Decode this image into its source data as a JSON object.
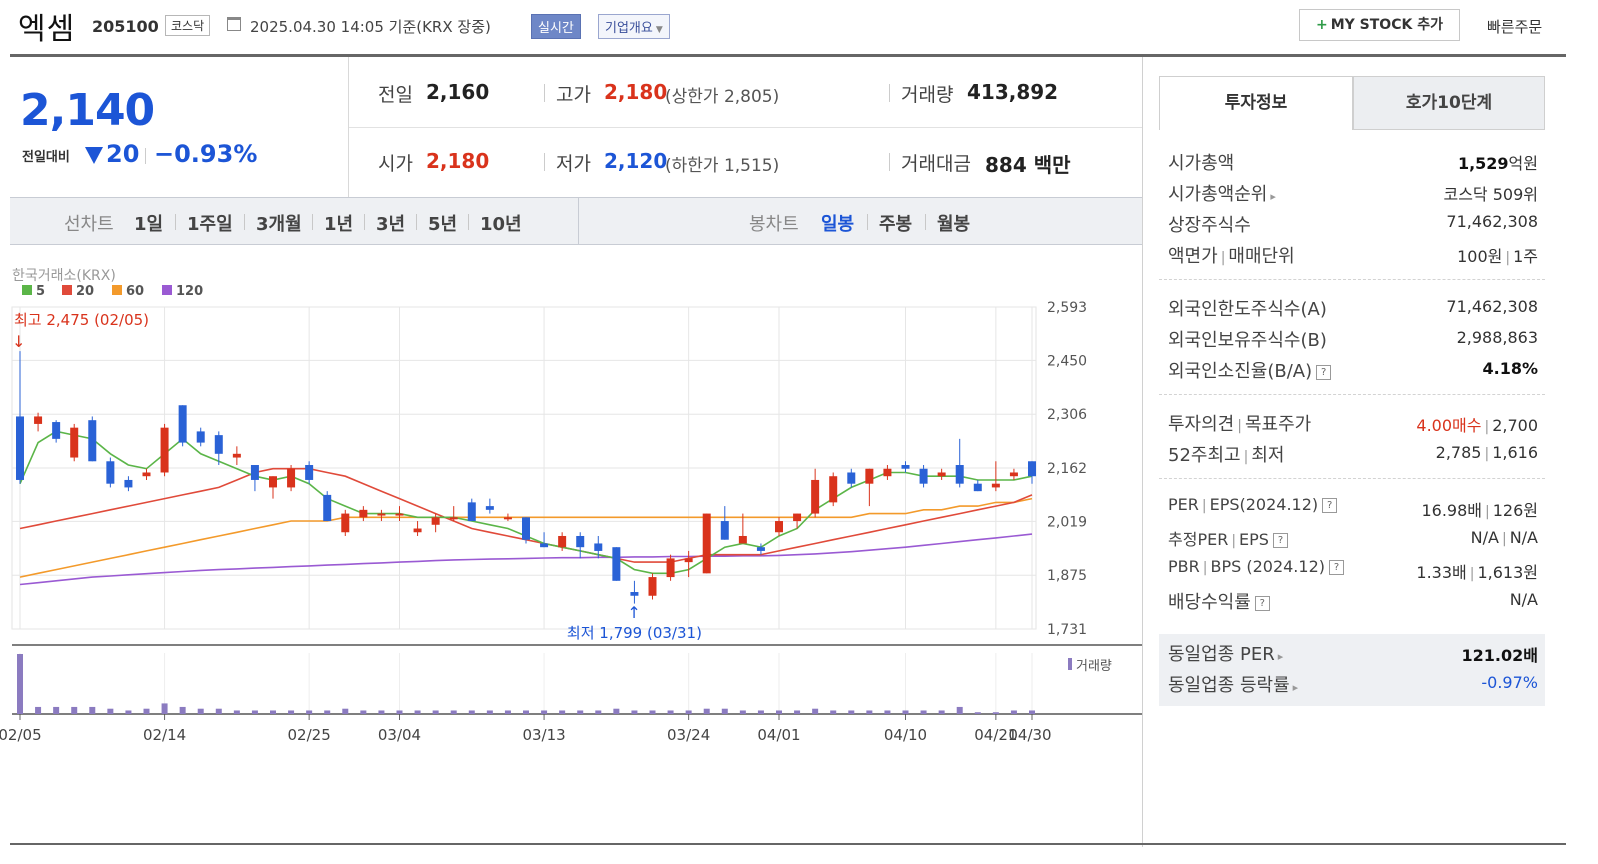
{
  "header": {
    "name": "엑셈",
    "code": "205100",
    "market": "코스닥",
    "datetime": "2025.04.30 14:05 기준(KRX 장중)",
    "realtime": "실시간",
    "overview": "기업개요",
    "mystock": "MY STOCK 추가",
    "quick_order": "빠른주문"
  },
  "quote": {
    "price": "2,140",
    "change_label": "전일대비",
    "change": "20",
    "change_pct": "−0.93%",
    "prev_label": "전일",
    "prev": "2,160",
    "high_label": "고가",
    "high": "2,180",
    "upper_limit": "(상한가 2,805)",
    "volume_label": "거래량",
    "volume": "413,892",
    "open_label": "시가",
    "open": "2,180",
    "low_label": "저가",
    "low": "2,120",
    "lower_limit": "(하한가 1,515)",
    "amount_label": "거래대금",
    "amount": "884 백만"
  },
  "tabs": {
    "line_label": "선차트",
    "periods": [
      "1일",
      "1주일",
      "3개월",
      "1년",
      "3년",
      "5년",
      "10년"
    ],
    "candle_label": "봉차트",
    "candle_periods": [
      "일봉",
      "주봉",
      "월봉"
    ]
  },
  "chart_data": {
    "type": "candlestick",
    "source": "한국거래소(KRX)",
    "legend": [
      {
        "name": "5",
        "color": "#5bb548"
      },
      {
        "name": "20",
        "color": "#e04a3a"
      },
      {
        "name": "60",
        "color": "#f39a2b"
      },
      {
        "name": "120",
        "color": "#9a5ad3"
      }
    ],
    "yticks": [
      "2,593",
      "2,450",
      "2,306",
      "2,162",
      "2,019",
      "1,875",
      "1,731"
    ],
    "ylim": [
      1731,
      2593
    ],
    "xticks": [
      "02/05",
      "02/14",
      "02/25",
      "03/04",
      "03/13",
      "03/24",
      "04/01",
      "04/10",
      "04/21",
      "04/30"
    ],
    "max_label": "최고 2,475 (02/05)",
    "min_label": "최저 1,799 (03/31)",
    "volume_label": "거래량",
    "colors": {
      "up": "#d9331c",
      "down": "#2a62d6",
      "vol": "#8b7bc0"
    },
    "candles": [
      {
        "o": 2300,
        "h": 2475,
        "l": 2120,
        "c": 2130
      },
      {
        "o": 2280,
        "h": 2310,
        "l": 2260,
        "c": 2300
      },
      {
        "o": 2285,
        "h": 2290,
        "l": 2230,
        "c": 2240
      },
      {
        "o": 2190,
        "h": 2280,
        "l": 2180,
        "c": 2270
      },
      {
        "o": 2290,
        "h": 2300,
        "l": 2180,
        "c": 2180
      },
      {
        "o": 2180,
        "h": 2190,
        "l": 2110,
        "c": 2120
      },
      {
        "o": 2130,
        "h": 2140,
        "l": 2100,
        "c": 2110
      },
      {
        "o": 2140,
        "h": 2160,
        "l": 2130,
        "c": 2150
      },
      {
        "o": 2150,
        "h": 2280,
        "l": 2140,
        "c": 2270
      },
      {
        "o": 2330,
        "h": 2330,
        "l": 2220,
        "c": 2230
      },
      {
        "o": 2260,
        "h": 2270,
        "l": 2220,
        "c": 2230
      },
      {
        "o": 2250,
        "h": 2260,
        "l": 2170,
        "c": 2200
      },
      {
        "o": 2190,
        "h": 2220,
        "l": 2170,
        "c": 2200
      },
      {
        "o": 2170,
        "h": 2170,
        "l": 2100,
        "c": 2130
      },
      {
        "o": 2110,
        "h": 2140,
        "l": 2080,
        "c": 2140
      },
      {
        "o": 2110,
        "h": 2170,
        "l": 2100,
        "c": 2160
      },
      {
        "o": 2170,
        "h": 2180,
        "l": 2120,
        "c": 2130
      },
      {
        "o": 2090,
        "h": 2100,
        "l": 2020,
        "c": 2020
      },
      {
        "o": 1990,
        "h": 2050,
        "l": 1980,
        "c": 2040
      },
      {
        "o": 2030,
        "h": 2060,
        "l": 2020,
        "c": 2050
      },
      {
        "o": 2040,
        "h": 2050,
        "l": 2020,
        "c": 2040
      },
      {
        "o": 2040,
        "h": 2060,
        "l": 2020,
        "c": 2040
      },
      {
        "o": 1990,
        "h": 2020,
        "l": 1980,
        "c": 2000
      },
      {
        "o": 2010,
        "h": 2040,
        "l": 1990,
        "c": 2030
      },
      {
        "o": 2030,
        "h": 2060,
        "l": 2020,
        "c": 2030
      },
      {
        "o": 2070,
        "h": 2080,
        "l": 2020,
        "c": 2020
      },
      {
        "o": 2060,
        "h": 2080,
        "l": 2040,
        "c": 2050
      },
      {
        "o": 2030,
        "h": 2040,
        "l": 2020,
        "c": 2030
      },
      {
        "o": 2030,
        "h": 2030,
        "l": 1960,
        "c": 1970
      },
      {
        "o": 1960,
        "h": 1990,
        "l": 1950,
        "c": 1950
      },
      {
        "o": 1950,
        "h": 1990,
        "l": 1940,
        "c": 1980
      },
      {
        "o": 1980,
        "h": 1990,
        "l": 1920,
        "c": 1950
      },
      {
        "o": 1960,
        "h": 1980,
        "l": 1920,
        "c": 1940
      },
      {
        "o": 1950,
        "h": 1950,
        "l": 1860,
        "c": 1860
      },
      {
        "o": 1830,
        "h": 1860,
        "l": 1799,
        "c": 1820
      },
      {
        "o": 1820,
        "h": 1880,
        "l": 1810,
        "c": 1870
      },
      {
        "o": 1870,
        "h": 1930,
        "l": 1860,
        "c": 1920
      },
      {
        "o": 1910,
        "h": 1940,
        "l": 1870,
        "c": 1920
      },
      {
        "o": 1880,
        "h": 2040,
        "l": 1880,
        "c": 2040
      },
      {
        "o": 2020,
        "h": 2060,
        "l": 1970,
        "c": 1970
      },
      {
        "o": 1960,
        "h": 2040,
        "l": 1960,
        "c": 1980
      },
      {
        "o": 1950,
        "h": 1960,
        "l": 1930,
        "c": 1940
      },
      {
        "o": 1990,
        "h": 2030,
        "l": 1980,
        "c": 2020
      },
      {
        "o": 2020,
        "h": 2040,
        "l": 2000,
        "c": 2040
      },
      {
        "o": 2040,
        "h": 2160,
        "l": 2030,
        "c": 2130
      },
      {
        "o": 2070,
        "h": 2150,
        "l": 2060,
        "c": 2140
      },
      {
        "o": 2150,
        "h": 2160,
        "l": 2110,
        "c": 2120
      },
      {
        "o": 2120,
        "h": 2160,
        "l": 2060,
        "c": 2160
      },
      {
        "o": 2140,
        "h": 2170,
        "l": 2130,
        "c": 2160
      },
      {
        "o": 2170,
        "h": 2180,
        "l": 2150,
        "c": 2160
      },
      {
        "o": 2160,
        "h": 2170,
        "l": 2110,
        "c": 2120
      },
      {
        "o": 2140,
        "h": 2160,
        "l": 2130,
        "c": 2150
      },
      {
        "o": 2170,
        "h": 2240,
        "l": 2110,
        "c": 2120
      },
      {
        "o": 2120,
        "h": 2130,
        "l": 2100,
        "c": 2100
      },
      {
        "o": 2110,
        "h": 2180,
        "l": 2100,
        "c": 2120
      },
      {
        "o": 2140,
        "h": 2160,
        "l": 2130,
        "c": 2150
      },
      {
        "o": 2180,
        "h": 2180,
        "l": 2120,
        "c": 2140
      }
    ],
    "volumes": [
      34,
      4,
      4,
      4,
      4,
      3,
      2,
      3,
      6,
      4,
      3,
      3,
      2,
      2,
      2,
      2,
      2,
      2,
      3,
      2,
      2,
      2,
      2,
      2,
      2,
      2,
      2,
      2,
      2,
      2,
      2,
      2,
      2,
      3,
      2,
      2,
      2,
      2,
      3,
      3,
      2,
      2,
      2,
      2,
      3,
      2,
      2,
      2,
      2,
      2,
      2,
      2,
      4,
      1,
      1,
      2,
      2
    ],
    "ma5": [
      2120,
      2230,
      2260,
      2250,
      2240,
      2200,
      2170,
      2160,
      2200,
      2240,
      2200,
      2180,
      2160,
      2140,
      2130,
      2140,
      2120,
      2080,
      2060,
      2040,
      2040,
      2040,
      2030,
      2030,
      2030,
      2020,
      2010,
      2000,
      1980,
      1960,
      1950,
      1940,
      1930,
      1920,
      1890,
      1880,
      1880,
      1890,
      1920,
      1950,
      1960,
      1950,
      1980,
      2000,
      2050,
      2080,
      2110,
      2130,
      2150,
      2150,
      2140,
      2140,
      2140,
      2130,
      2130,
      2130,
      2140
    ],
    "ma20": [
      2000,
      2010,
      2020,
      2030,
      2040,
      2050,
      2060,
      2070,
      2080,
      2090,
      2100,
      2110,
      2130,
      2150,
      2160,
      2160,
      2160,
      2150,
      2140,
      2120,
      2100,
      2080,
      2060,
      2040,
      2020,
      2000,
      1990,
      1980,
      1970,
      1960,
      1950,
      1940,
      1930,
      1920,
      1910,
      1910,
      1910,
      1920,
      1930,
      1930,
      1930,
      1930,
      1940,
      1950,
      1960,
      1970,
      1980,
      1990,
      2000,
      2010,
      2020,
      2030,
      2040,
      2050,
      2060,
      2070,
      2090
    ],
    "ma60": [
      1870,
      1880,
      1890,
      1900,
      1910,
      1920,
      1930,
      1940,
      1950,
      1960,
      1970,
      1980,
      1990,
      2000,
      2010,
      2020,
      2020,
      2020,
      2030,
      2030,
      2030,
      2030,
      2030,
      2030,
      2030,
      2030,
      2030,
      2030,
      2030,
      2030,
      2030,
      2030,
      2030,
      2030,
      2030,
      2030,
      2030,
      2030,
      2030,
      2030,
      2030,
      2030,
      2030,
      2030,
      2030,
      2030,
      2030,
      2040,
      2040,
      2040,
      2050,
      2050,
      2060,
      2060,
      2070,
      2070,
      2080
    ],
    "ma120": [
      1850,
      1855,
      1860,
      1865,
      1870,
      1873,
      1876,
      1879,
      1882,
      1885,
      1888,
      1890,
      1892,
      1894,
      1896,
      1898,
      1900,
      1902,
      1904,
      1906,
      1908,
      1910,
      1912,
      1914,
      1916,
      1917,
      1918,
      1919,
      1920,
      1921,
      1922,
      1922,
      1923,
      1923,
      1924,
      1924,
      1925,
      1925,
      1926,
      1926,
      1927,
      1927,
      1928,
      1930,
      1932,
      1935,
      1938,
      1942,
      1946,
      1950,
      1955,
      1960,
      1965,
      1970,
      1975,
      1980,
      1985
    ]
  },
  "panel": {
    "tab_active": "투자정보",
    "tab_inactive": "호가10단계",
    "rows": {
      "mcap_label": "시가총액",
      "mcap_num": "1,529",
      "mcap_unit": "억원",
      "rank_label": "시가총액순위",
      "rank_val": "코스닥 509위",
      "shares_label": "상장주식수",
      "shares_val": "71,462,308",
      "par_label1": "액면가",
      "par_label2": "매매단위",
      "par_val1": "100원",
      "par_val2": "1주",
      "fl_label": "외국인한도주식수(A)",
      "fl_val": "71,462,308",
      "fh_label": "외국인보유주식수(B)",
      "fh_val": "2,988,863",
      "fr_label": "외국인소진율(B/A)",
      "fr_val": "4.18%",
      "op_label1": "투자의견",
      "op_label2": "목표주가",
      "op_val1": "4.00매수",
      "op_val2": "2,700",
      "w52_label1": "52주최고",
      "w52_label2": "최저",
      "w52_val1": "2,785",
      "w52_val2": "1,616",
      "per_label1": "PER",
      "per_label2": "EPS(2024.12)",
      "per_val1": "16.98배",
      "per_val2": "126원",
      "eper_label1": "추정PER",
      "eper_label2": "EPS",
      "eper_val1": "N/A",
      "eper_val2": "N/A",
      "pbr_label1": "PBR",
      "pbr_label2": "BPS (2024.12)",
      "pbr_val1": "1.33배",
      "pbr_val2": "1,613원",
      "div_label": "배당수익률",
      "div_val": "N/A",
      "peer_per_label": "동일업종 PER",
      "peer_per_val": "121.02배",
      "peer_chg_label": "동일업종 등락률",
      "peer_chg_val": "-0.97%"
    }
  }
}
